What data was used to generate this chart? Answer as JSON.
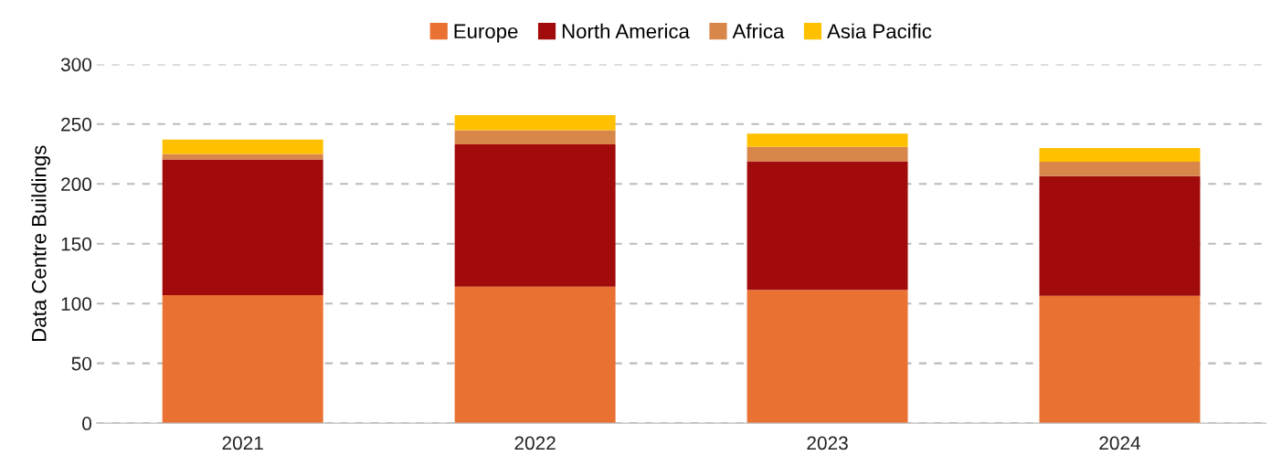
{
  "chart_data": {
    "type": "bar",
    "stacked": true,
    "ylabel": "Data Centre Buildings",
    "categories": [
      "2021",
      "2022",
      "2023",
      "2024"
    ],
    "series": [
      {
        "name": "Europe",
        "color": "#e97132",
        "values": [
          107,
          114,
          111.5,
          106.5
        ]
      },
      {
        "name": "North America",
        "color": "#a20b0b",
        "values": [
          113.5,
          119,
          107.5,
          100
        ]
      },
      {
        "name": "Africa",
        "color": "#d8864a",
        "values": [
          4.5,
          12,
          12,
          12
        ]
      },
      {
        "name": "Asia Pacific",
        "color": "#ffc000",
        "values": [
          12,
          12.5,
          11,
          11.5
        ]
      }
    ],
    "ylim": [
      0,
      300
    ],
    "yticks": [
      0,
      50,
      100,
      150,
      200,
      250,
      300
    ],
    "grid": "y",
    "legend": "top"
  }
}
